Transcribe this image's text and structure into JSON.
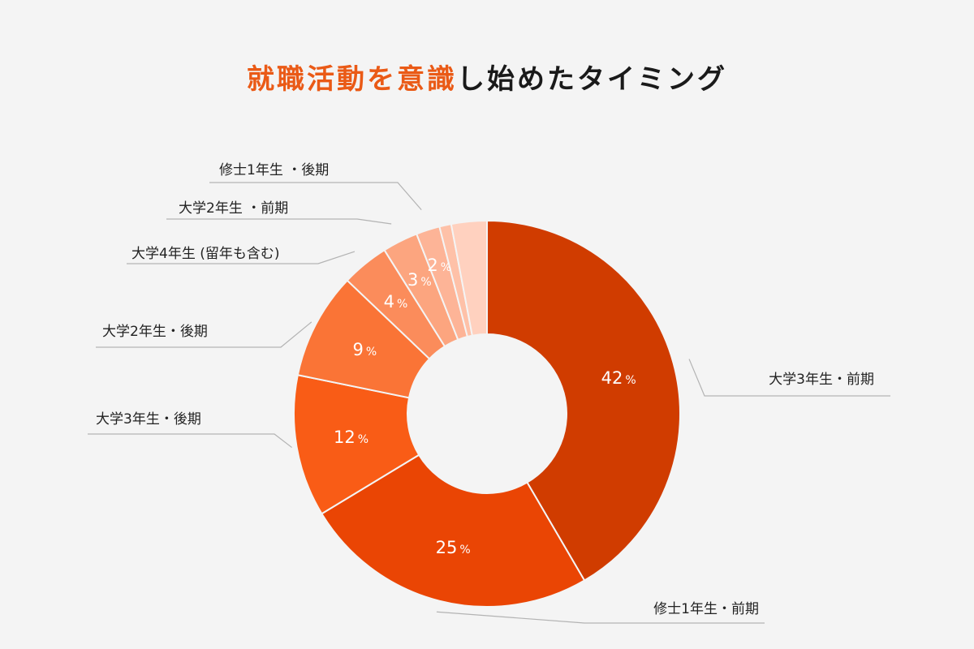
{
  "title": {
    "highlight": "就職活動を意識",
    "rest": "し始めたタイミング"
  },
  "chart_data": {
    "type": "pie",
    "donut": true,
    "title": "就職活動を意識し始めたタイミング",
    "unit": "%",
    "categories": [
      "大学3年生・前期",
      "修士1年生・前期",
      "大学3年生・後期",
      "大学2年生・後期",
      "大学4年生 (留年も含む)",
      "大学2年生 ・前期",
      "修士1年生 ・後期",
      "",
      ""
    ],
    "values": [
      42,
      25,
      12,
      9,
      4,
      3,
      2,
      1,
      3
    ],
    "data_labels": [
      "42",
      "25",
      "12",
      "9",
      "4",
      "3",
      "2",
      "",
      ""
    ],
    "colors": [
      "#d03c00",
      "#ea4504",
      "#f95c16",
      "#fa7436",
      "#fb8c5b",
      "#fca57f",
      "#fdb497",
      "#fec1a8",
      "#ffd1bf"
    ],
    "legend": "outside labels with leader lines"
  }
}
